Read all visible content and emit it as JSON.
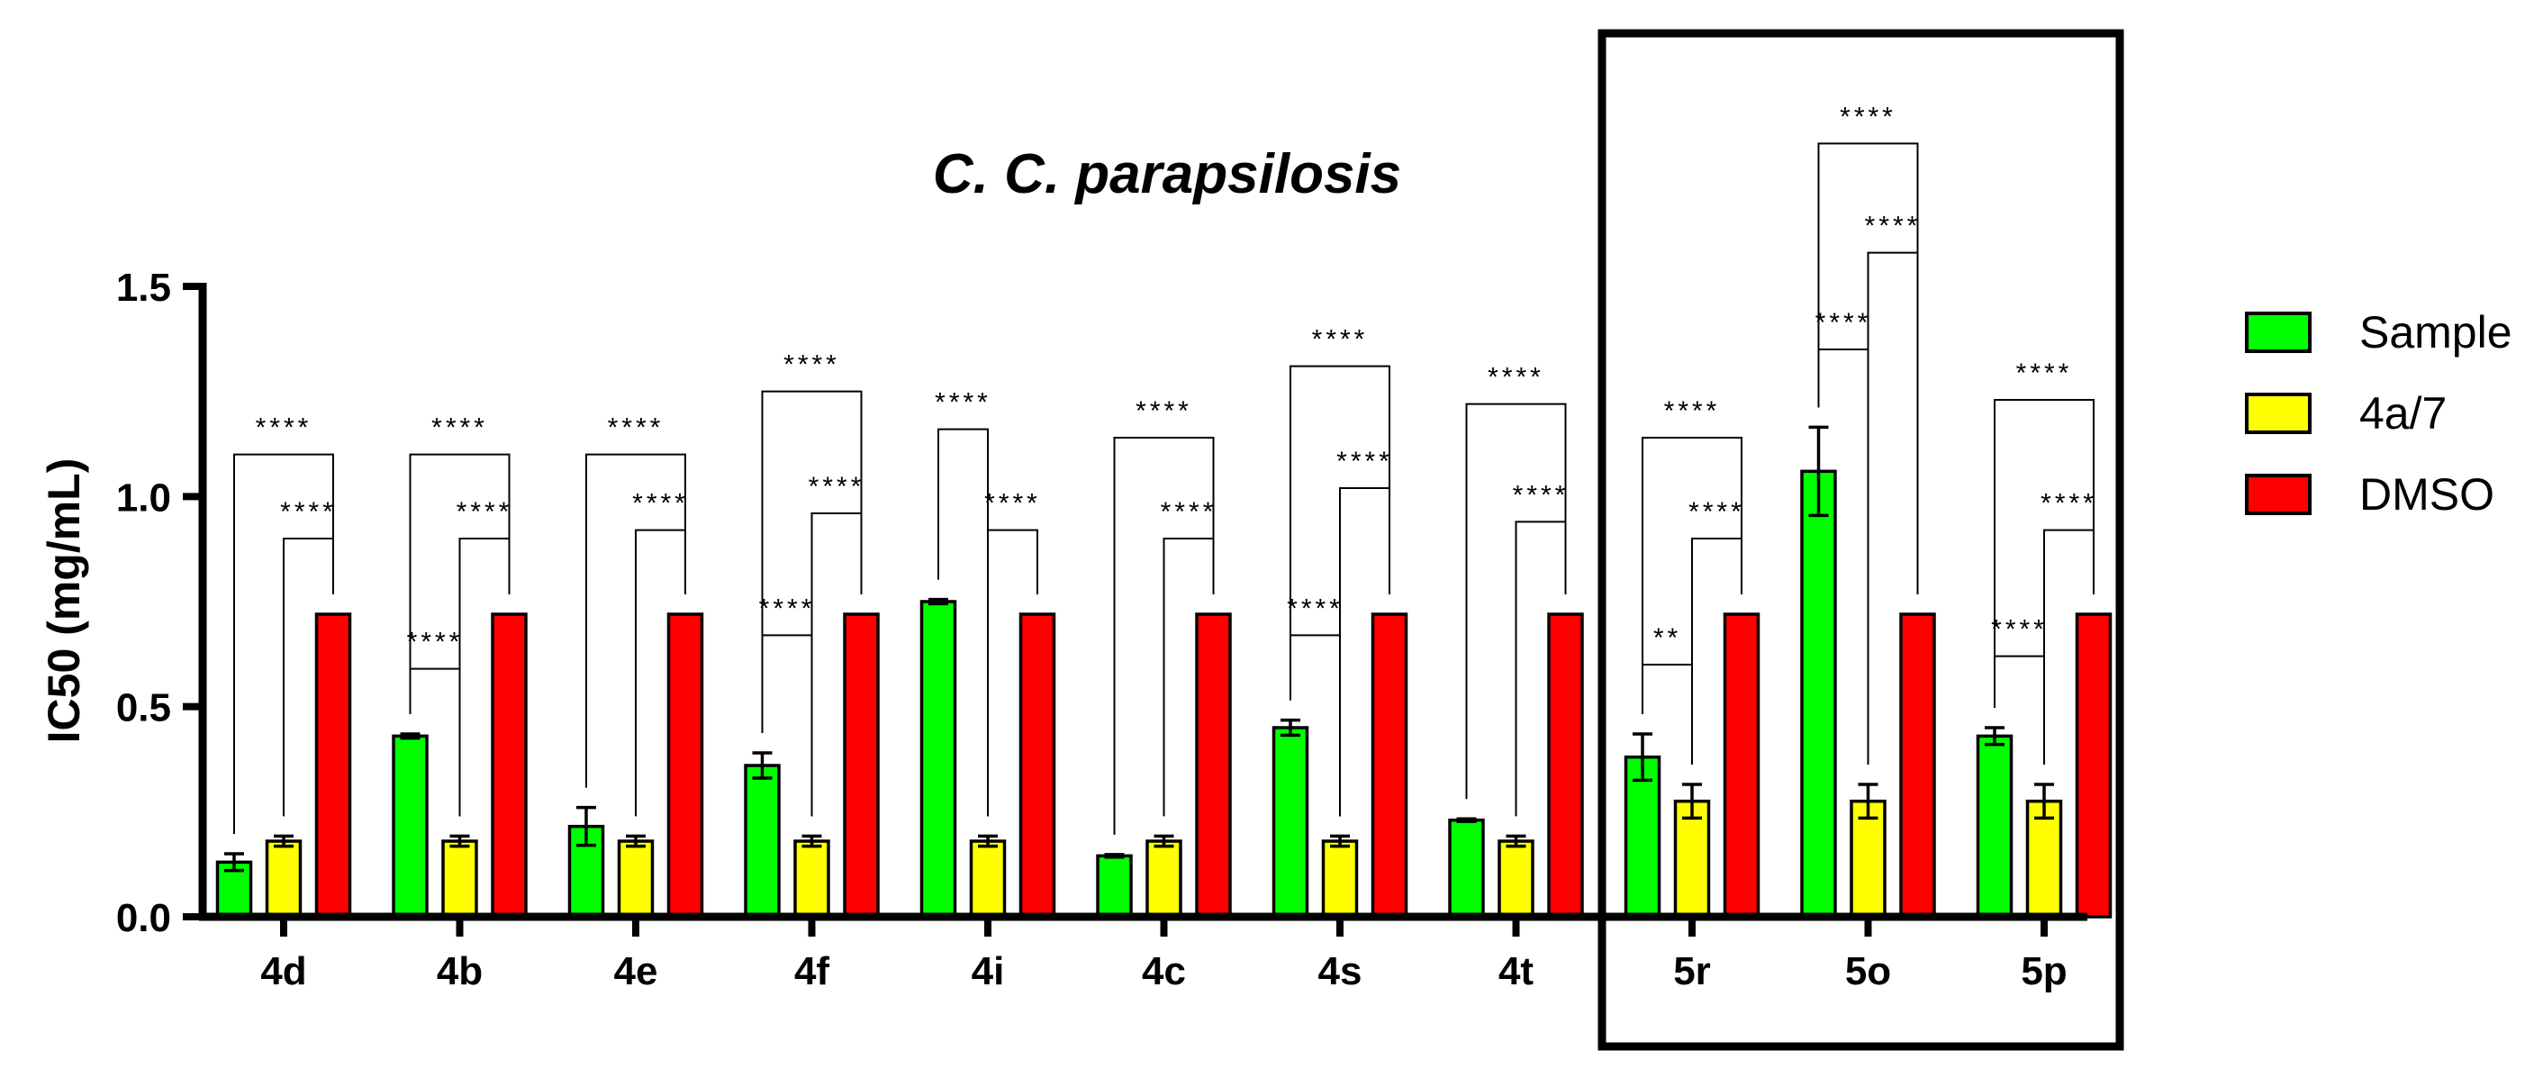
{
  "chart_data": {
    "type": "bar",
    "title": "C. C. parapsilosis",
    "xlabel": "",
    "ylabel": "IC50 (mg/mL)",
    "ylim": [
      0,
      1.5
    ],
    "yticks": [
      "0.0",
      "0.5",
      "1.0",
      "1.5"
    ],
    "ytick_values": [
      0,
      0.5,
      1.0,
      1.5
    ],
    "categories": [
      "4d",
      "4b",
      "4e",
      "4f",
      "4i",
      "4c",
      "4s",
      "4t",
      "5r",
      "5o",
      "5p"
    ],
    "highlighted_group": [
      "5r",
      "5o",
      "5p"
    ],
    "legend_position": "right",
    "series": [
      {
        "name": "Sample",
        "color": "#00ff00",
        "values": [
          0.13,
          0.43,
          0.215,
          0.36,
          0.75,
          0.145,
          0.45,
          0.23,
          0.38,
          1.06,
          0.43
        ],
        "errors": [
          0.02,
          0.005,
          0.045,
          0.03,
          0.005,
          0.003,
          0.018,
          0.003,
          0.055,
          0.105,
          0.02
        ]
      },
      {
        "name": "4a/7",
        "color": "#ffff00",
        "values": [
          0.18,
          0.18,
          0.18,
          0.18,
          0.18,
          0.18,
          0.18,
          0.18,
          0.275,
          0.275,
          0.275
        ],
        "errors": [
          0.012,
          0.012,
          0.012,
          0.012,
          0.012,
          0.012,
          0.012,
          0.012,
          0.04,
          0.04,
          0.04
        ]
      },
      {
        "name": "DMSO",
        "color": "#ff0000",
        "values": [
          0.72,
          0.72,
          0.72,
          0.72,
          0.72,
          0.72,
          0.72,
          0.72,
          0.72,
          0.72,
          0.72
        ],
        "errors": [
          0,
          0,
          0,
          0,
          0,
          0,
          0,
          0,
          0,
          0,
          0
        ]
      }
    ],
    "comparisons": [
      {
        "group": "4d",
        "from": 0,
        "to": 2,
        "label": "****",
        "level": 1.1
      },
      {
        "group": "4d",
        "from": 1,
        "to": 2,
        "label": "****",
        "level": 0.9
      },
      {
        "group": "4b",
        "from": 0,
        "to": 2,
        "label": "****",
        "level": 1.1
      },
      {
        "group": "4b",
        "from": 1,
        "to": 2,
        "label": "****",
        "level": 0.9
      },
      {
        "group": "4b",
        "from": 0,
        "to": 1,
        "label": "****",
        "level": 0.59
      },
      {
        "group": "4e",
        "from": 0,
        "to": 2,
        "label": "****",
        "level": 1.1
      },
      {
        "group": "4e",
        "from": 1,
        "to": 2,
        "label": "****",
        "level": 0.92
      },
      {
        "group": "4f",
        "from": 0,
        "to": 2,
        "label": "****",
        "level": 1.25
      },
      {
        "group": "4f",
        "from": 1,
        "to": 2,
        "label": "****",
        "level": 0.96
      },
      {
        "group": "4f",
        "from": 0,
        "to": 1,
        "label": "****",
        "level": 0.67
      },
      {
        "group": "4i",
        "from": 0,
        "to": 1,
        "label": "****",
        "level": 1.16
      },
      {
        "group": "4i",
        "from": 1,
        "to": 2,
        "label": "****",
        "level": 0.92
      },
      {
        "group": "4c",
        "from": 0,
        "to": 2,
        "label": "****",
        "level": 1.14
      },
      {
        "group": "4c",
        "from": 1,
        "to": 2,
        "label": "****",
        "level": 0.9
      },
      {
        "group": "4s",
        "from": 0,
        "to": 2,
        "label": "****",
        "level": 1.31
      },
      {
        "group": "4s",
        "from": 1,
        "to": 2,
        "label": "****",
        "level": 1.02
      },
      {
        "group": "4s",
        "from": 0,
        "to": 1,
        "label": "****",
        "level": 0.67
      },
      {
        "group": "4t",
        "from": 0,
        "to": 2,
        "label": "****",
        "level": 1.22
      },
      {
        "group": "4t",
        "from": 1,
        "to": 2,
        "label": "****",
        "level": 0.94
      },
      {
        "group": "5r",
        "from": 0,
        "to": 2,
        "label": "****",
        "level": 1.14
      },
      {
        "group": "5r",
        "from": 1,
        "to": 2,
        "label": "****",
        "level": 0.9
      },
      {
        "group": "5r",
        "from": 0,
        "to": 1,
        "label": "**",
        "level": 0.6
      },
      {
        "group": "5o",
        "from": 0,
        "to": 2,
        "label": "****",
        "level": 1.84
      },
      {
        "group": "5o",
        "from": 1,
        "to": 2,
        "label": "****",
        "level": 1.58
      },
      {
        "group": "5o",
        "from": 0,
        "to": 1,
        "label": "****",
        "level": 1.35
      },
      {
        "group": "5p",
        "from": 0,
        "to": 2,
        "label": "****",
        "level": 1.23
      },
      {
        "group": "5p",
        "from": 1,
        "to": 2,
        "label": "****",
        "level": 0.92
      },
      {
        "group": "5p",
        "from": 0,
        "to": 1,
        "label": "****",
        "level": 0.62
      }
    ]
  }
}
